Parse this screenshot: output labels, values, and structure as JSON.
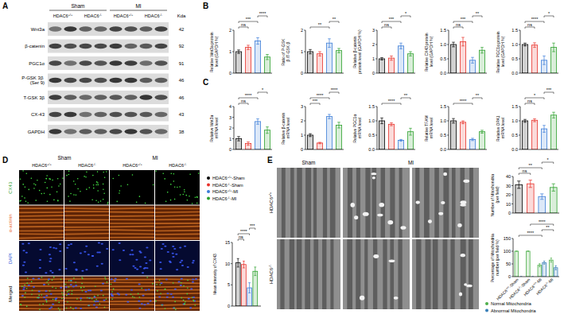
{
  "panels": {
    "A": {
      "letter": "A",
      "groups": [
        "Sham",
        "MI"
      ],
      "genotypes": [
        "HDAC6+/+",
        "HDAC6-/-",
        "HDAC6+/+",
        "HDAC6-/-"
      ],
      "unit": "Kda",
      "rows": [
        {
          "label": "Wnt3a",
          "kda": 42
        },
        {
          "label": "β-catenin",
          "kda": 92
        },
        {
          "label": "PGC1α",
          "kda": 91
        },
        {
          "label": "P-GSK 3β (Ser 9)",
          "kda": 46
        },
        {
          "label": "T-GSK 3β",
          "kda": 46
        },
        {
          "label": "CX-43",
          "kda": 43
        },
        {
          "label": "GAPDH",
          "kda": 38
        }
      ]
    },
    "B": {
      "letter": "B"
    },
    "C": {
      "letter": "C"
    },
    "D": {
      "letter": "D",
      "groups": [
        "Sham",
        "MI"
      ],
      "genotypes": [
        "HDAC6+/+",
        "HDAC6-/-",
        "HDAC6+/+",
        "HDAC6-/-"
      ],
      "rows": [
        "CX43",
        "α-actinin",
        "DAPI",
        "Merged"
      ]
    },
    "E": {
      "letter": "E",
      "groups": [
        "Sham",
        "MI"
      ],
      "rows": [
        "HDAC6+/+",
        "HDAC6-/-"
      ]
    }
  },
  "chart_data": [
    {
      "type": "bar",
      "ylabel": "Relative Wnt3a protein level (GAPDH %)",
      "categories": [
        null,
        null,
        null,
        null
      ],
      "values": [
        1,
        1.2,
        1.5,
        0.75
      ],
      "errors": [
        0.08,
        0.1,
        0.15,
        0.12
      ],
      "colors": [
        "#000000",
        "#e8312a",
        "#3b7dd8",
        "#2ca02c"
      ],
      "ylim": [
        0,
        2
      ],
      "yticks": [
        0,
        1,
        2
      ],
      "annotations": [
        {
          "label": "ns",
          "between": [
            0,
            1
          ]
        },
        {
          "label": "***",
          "between": [
            0,
            2
          ]
        },
        {
          "label": "****",
          "between": [
            2,
            3
          ]
        }
      ]
    },
    {
      "type": "bar",
      "ylabel": "Ratio of P-GSK β /T-GSK β",
      "categories": [
        null,
        null,
        null,
        null
      ],
      "values": [
        1,
        0.9,
        1.4,
        1.05
      ],
      "errors": [
        0.1,
        0.1,
        0.2,
        0.1
      ],
      "colors": [
        "#000000",
        "#e8312a",
        "#3b7dd8",
        "#2ca02c"
      ],
      "ylim": [
        0,
        2
      ],
      "yticks": [
        0,
        1,
        2
      ],
      "annotations": [
        {
          "label": "**",
          "between": [
            0,
            2
          ]
        },
        {
          "label": "**",
          "between": [
            2,
            3
          ]
        }
      ]
    },
    {
      "type": "bar",
      "ylabel": "Relative β-catenin protein level (GAPDH %)",
      "categories": [
        null,
        null,
        null,
        null
      ],
      "values": [
        1,
        1.05,
        1.9,
        1.35
      ],
      "errors": [
        0.08,
        0.15,
        0.2,
        0.15
      ],
      "colors": [
        "#000000",
        "#e8312a",
        "#3b7dd8",
        "#2ca02c"
      ],
      "ylim": [
        0,
        3
      ],
      "yticks": [
        0,
        1,
        2,
        3
      ],
      "annotations": [
        {
          "label": "ns",
          "between": [
            0,
            1
          ]
        },
        {
          "label": "***",
          "between": [
            0,
            2
          ]
        },
        {
          "label": "*",
          "between": [
            2,
            3
          ]
        }
      ]
    },
    {
      "type": "bar",
      "ylabel": "Relative CX43 protein level (GAPDH %)",
      "categories": [
        null,
        null,
        null,
        null
      ],
      "values": [
        1,
        1.1,
        0.45,
        0.8
      ],
      "errors": [
        0.08,
        0.15,
        0.1,
        0.1
      ],
      "colors": [
        "#000000",
        "#e8312a",
        "#3b7dd8",
        "#2ca02c"
      ],
      "ylim": [
        0,
        1.5
      ],
      "yticks": [
        {
          "value": 0,
          "label": "0.0"
        },
        {
          "value": 0.5,
          "label": "0.5"
        },
        {
          "value": 1,
          "label": "1.0"
        },
        {
          "value": 1.5,
          "label": "1.5"
        }
      ],
      "annotations": [
        {
          "label": "ns",
          "between": [
            0,
            1
          ]
        },
        {
          "label": "***",
          "between": [
            0,
            2
          ]
        },
        {
          "label": "**",
          "between": [
            2,
            3
          ]
        }
      ]
    },
    {
      "type": "bar",
      "ylabel": "Relative PGC1α protein level (GAPDH %)",
      "categories": [
        null,
        null,
        null,
        null
      ],
      "values": [
        1,
        0.98,
        0.45,
        0.9
      ],
      "errors": [
        0.05,
        0.08,
        0.15,
        0.15
      ],
      "colors": [
        "#000000",
        "#e8312a",
        "#3b7dd8",
        "#2ca02c"
      ],
      "ylim": [
        0,
        1.5
      ],
      "yticks": [
        {
          "value": 0,
          "label": "0.0"
        },
        {
          "value": 0.5,
          "label": "0.5"
        },
        {
          "value": 1,
          "label": "1.0"
        },
        {
          "value": 1.5,
          "label": "1.5"
        }
      ],
      "annotations": [
        {
          "label": "ns",
          "between": [
            0,
            1
          ]
        },
        {
          "label": "****",
          "between": [
            0,
            2
          ]
        },
        {
          "label": "*",
          "between": [
            2,
            3
          ]
        }
      ]
    },
    {
      "type": "bar",
      "ylabel": "Relative Wnt3a mRNA level",
      "categories": [
        null,
        null,
        null,
        null
      ],
      "values": [
        1,
        0.55,
        2.6,
        1.8
      ],
      "errors": [
        0.2,
        0.15,
        0.25,
        0.3
      ],
      "colors": [
        "#000000",
        "#e8312a",
        "#3b7dd8",
        "#2ca02c"
      ],
      "ylim": [
        0,
        4
      ],
      "yticks": [
        0,
        1,
        2,
        3,
        4
      ],
      "annotations": [
        {
          "label": "ns",
          "between": [
            0,
            1
          ]
        },
        {
          "label": "****",
          "between": [
            0,
            2
          ]
        },
        {
          "label": "*",
          "between": [
            2,
            3
          ]
        }
      ]
    },
    {
      "type": "bar",
      "ylabel": "Relative β-catenin mRNA level",
      "categories": [
        null,
        null,
        null,
        null
      ],
      "values": [
        1,
        0.45,
        2.3,
        1.7
      ],
      "errors": [
        0.1,
        0.05,
        0.15,
        0.2
      ],
      "colors": [
        "#000000",
        "#e8312a",
        "#3b7dd8",
        "#2ca02c"
      ],
      "ylim": [
        0,
        3
      ],
      "yticks": [
        0,
        1,
        2,
        3
      ],
      "annotations": [
        {
          "label": "***",
          "between": [
            0,
            1
          ]
        },
        {
          "label": "****",
          "between": [
            0,
            2
          ]
        },
        {
          "label": "****",
          "between": [
            2,
            3
          ]
        }
      ]
    },
    {
      "type": "bar",
      "ylabel": "Relative PGC1α mRNA level",
      "categories": [
        null,
        null,
        null,
        null
      ],
      "values": [
        1,
        0.88,
        0.32,
        0.62
      ],
      "errors": [
        0.1,
        0.05,
        0.03,
        0.12
      ],
      "colors": [
        "#000000",
        "#e8312a",
        "#3b7dd8",
        "#2ca02c"
      ],
      "ylim": [
        0,
        1.5
      ],
      "yticks": [
        {
          "value": 0,
          "label": "0.0"
        },
        {
          "value": 0.5,
          "label": "0.5"
        },
        {
          "value": 1,
          "label": "1.0"
        },
        {
          "value": 1.5,
          "label": "1.5"
        }
      ],
      "annotations": [
        {
          "label": "****",
          "between": [
            0,
            2
          ]
        },
        {
          "label": "**",
          "between": [
            2,
            3
          ]
        }
      ]
    },
    {
      "type": "bar",
      "ylabel": "Relative TFAM mRNA level",
      "categories": [
        null,
        null,
        null,
        null
      ],
      "values": [
        1,
        0.95,
        0.35,
        0.62
      ],
      "errors": [
        0.08,
        0.05,
        0.04,
        0.05
      ],
      "colors": [
        "#000000",
        "#e8312a",
        "#3b7dd8",
        "#2ca02c"
      ],
      "ylim": [
        0,
        1.5
      ],
      "yticks": [
        {
          "value": 0,
          "label": "0.0"
        },
        {
          "value": 0.5,
          "label": "0.5"
        },
        {
          "value": 1,
          "label": "1.0"
        },
        {
          "value": 1.5,
          "label": "1.5"
        }
      ],
      "annotations": [
        {
          "label": "****",
          "between": [
            0,
            2
          ]
        },
        {
          "label": "**",
          "between": [
            2,
            3
          ]
        }
      ]
    },
    {
      "type": "bar",
      "ylabel": "Relative OPA1 mRNA level",
      "categories": [
        null,
        null,
        null,
        null
      ],
      "values": [
        1,
        1.02,
        0.72,
        1.2
      ],
      "errors": [
        0.05,
        0.05,
        0.12,
        0.1
      ],
      "colors": [
        "#000000",
        "#e8312a",
        "#3b7dd8",
        "#2ca02c"
      ],
      "ylim": [
        0,
        1.5
      ],
      "yticks": [
        {
          "value": 0,
          "label": "0.0"
        },
        {
          "value": 0.5,
          "label": "0.5"
        },
        {
          "value": 1,
          "label": "1.0"
        },
        {
          "value": 1.5,
          "label": "1.5"
        }
      ],
      "annotations": [
        {
          "label": "ns",
          "between": [
            0,
            1
          ]
        },
        {
          "label": "*",
          "between": [
            0,
            2
          ]
        },
        {
          "label": "***",
          "between": [
            2,
            3
          ]
        }
      ]
    },
    {
      "type": "bar",
      "ylabel": "Mean intensity of CX43",
      "categories": [
        null
      ],
      "legend": "top",
      "series": [
        {
          "name": "HDAC6+/+-Sham",
          "color": "#000000",
          "values": [
            10.2
          ],
          "errors": [
            1
          ]
        },
        {
          "name": "HDAC6-/--Sham",
          "color": "#e8312a",
          "values": [
            9.8
          ],
          "errors": [
            0.8
          ]
        },
        {
          "name": "HDAC6+/+-MI",
          "color": "#3b7dd8",
          "values": [
            4.3
          ],
          "errors": [
            1.2
          ]
        },
        {
          "name": "HDAC6-/--MI",
          "color": "#2ca02c",
          "values": [
            8.2
          ],
          "errors": [
            1
          ]
        }
      ],
      "ylim": [
        0,
        15
      ],
      "yticks": [
        0,
        5,
        10,
        15
      ],
      "annotations": [
        {
          "label": "ns",
          "between": [
            0,
            1
          ]
        },
        {
          "label": "****",
          "between": [
            0,
            2
          ]
        },
        {
          "label": "***",
          "between": [
            2,
            3
          ]
        }
      ]
    },
    {
      "type": "bar",
      "ylabel": "Number of Mitochondria (per field)",
      "categories": [
        null,
        null,
        null,
        null
      ],
      "values": [
        31,
        32,
        18,
        28
      ],
      "errors": [
        4,
        4,
        3,
        4
      ],
      "colors": [
        "#000000",
        "#e8312a",
        "#3b7dd8",
        "#2ca02c"
      ],
      "ylim": [
        0,
        40
      ],
      "yticks": [
        0,
        10,
        20,
        30,
        40
      ],
      "annotations": [
        {
          "label": "ns",
          "between": [
            0,
            1
          ]
        },
        {
          "label": "**",
          "between": [
            0,
            2
          ]
        },
        {
          "label": "*",
          "between": [
            2,
            3
          ]
        }
      ]
    },
    {
      "type": "bar",
      "ylabel": "Percentage of Mitochondria number (per field %)",
      "categories": [
        "HDAC6+/+-Sham",
        "HDAC6-/--Sham",
        "HDAC6+/+-MI",
        "HDAC6-/--MI"
      ],
      "legend": "bottom",
      "series": [
        {
          "name": "Normal Mitochondria",
          "color": "#4daf4a",
          "values": [
            100,
            100,
            45,
            65
          ],
          "errors": [
            0,
            0,
            6,
            8
          ]
        },
        {
          "name": "Abnormal Mitochondria",
          "color": "#377eb8",
          "values": [
            0,
            0,
            55,
            35
          ],
          "errors": [
            0,
            0,
            6,
            8
          ]
        }
      ],
      "ylim": [
        0,
        150
      ],
      "yticks": [
        0,
        50,
        100,
        150
      ],
      "annotations": [
        {
          "label": "****",
          "between": [
            0,
            2
          ]
        },
        {
          "label": "**",
          "between": [
            2,
            3
          ]
        },
        {
          "label": "****",
          "between": [
            1,
            3
          ]
        }
      ]
    }
  ]
}
